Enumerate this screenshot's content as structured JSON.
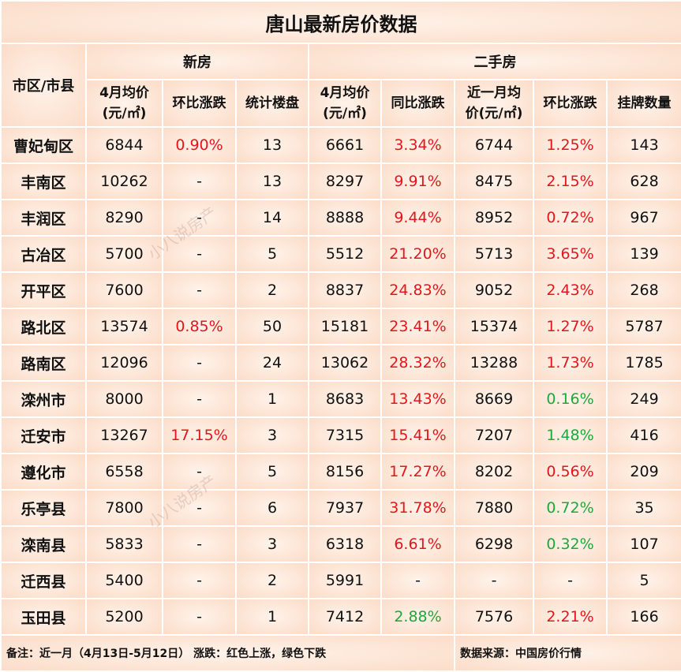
{
  "header": {
    "title": "唐山最新房价数据"
  },
  "table": {
    "group_headers": {
      "district": "市区/市县",
      "new": "新房",
      "second": "二手房"
    },
    "columns": [
      "4月均价\n(元/㎡)",
      "环比涨跌",
      "统计楼盘",
      "4月均价\n(元/㎡)",
      "同比涨跌",
      "近一月均\n价(元/㎡)",
      "环比涨跌",
      "挂牌数量"
    ],
    "colors": {
      "up": "#e8141b",
      "down": "#1fa83a"
    },
    "rows": [
      [
        "曹妃甸区",
        "6844",
        {
          "text": "0.90%",
          "trend": "up"
        },
        "13",
        "6661",
        {
          "text": "3.34%",
          "trend": "up"
        },
        "6744",
        {
          "text": "1.25%",
          "trend": "up"
        },
        "143"
      ],
      [
        "丰南区",
        "10262",
        "-",
        "13",
        "8297",
        {
          "text": "9.91%",
          "trend": "up"
        },
        "8475",
        {
          "text": "2.15%",
          "trend": "up"
        },
        "628"
      ],
      [
        "丰润区",
        "8290",
        "-",
        "14",
        "8888",
        {
          "text": "9.44%",
          "trend": "up"
        },
        "8952",
        {
          "text": "0.72%",
          "trend": "up"
        },
        "967"
      ],
      [
        "古冶区",
        "5700",
        "-",
        "5",
        "5512",
        {
          "text": "21.20%",
          "trend": "up"
        },
        "5713",
        {
          "text": "3.65%",
          "trend": "up"
        },
        "139"
      ],
      [
        "开平区",
        "7600",
        "-",
        "2",
        "8837",
        {
          "text": "24.83%",
          "trend": "up"
        },
        "9052",
        {
          "text": "2.43%",
          "trend": "up"
        },
        "268"
      ],
      [
        "路北区",
        "13574",
        {
          "text": "0.85%",
          "trend": "up"
        },
        "50",
        "15181",
        {
          "text": "23.41%",
          "trend": "up"
        },
        "15374",
        {
          "text": "1.27%",
          "trend": "up"
        },
        "5787"
      ],
      [
        "路南区",
        "12096",
        "-",
        "24",
        "13062",
        {
          "text": "28.32%",
          "trend": "up"
        },
        "13288",
        {
          "text": "1.73%",
          "trend": "up"
        },
        "1785"
      ],
      [
        "滦州市",
        "8000",
        "-",
        "1",
        "8683",
        {
          "text": "13.43%",
          "trend": "up"
        },
        "8669",
        {
          "text": "0.16%",
          "trend": "down"
        },
        "249"
      ],
      [
        "迁安市",
        "13267",
        {
          "text": "17.15%",
          "trend": "up"
        },
        "3",
        "7315",
        {
          "text": "15.41%",
          "trend": "up"
        },
        "7207",
        {
          "text": "1.48%",
          "trend": "down"
        },
        "416"
      ],
      [
        "遵化市",
        "6558",
        "-",
        "5",
        "8156",
        {
          "text": "17.27%",
          "trend": "up"
        },
        "8202",
        {
          "text": "0.56%",
          "trend": "up"
        },
        "209"
      ],
      [
        "乐亭县",
        "7800",
        "-",
        "6",
        "7937",
        {
          "text": "31.78%",
          "trend": "up"
        },
        "7880",
        {
          "text": "0.72%",
          "trend": "down"
        },
        "35"
      ],
      [
        "滦南县",
        "5833",
        "-",
        "3",
        "6318",
        {
          "text": "6.61%",
          "trend": "up"
        },
        "6298",
        {
          "text": "0.32%",
          "trend": "down"
        },
        "107"
      ],
      [
        "迁西县",
        "5400",
        "-",
        "2",
        "5991",
        "-",
        "-",
        "-",
        "5"
      ],
      [
        "玉田县",
        "5200",
        "-",
        "1",
        "7412",
        {
          "text": "2.88%",
          "trend": "down"
        },
        "7576",
        {
          "text": "2.21%",
          "trend": "up"
        },
        "166"
      ]
    ]
  },
  "footer": {
    "note": "备注：近一月（4月13日-5月12日） 涨跌：红色上涨，绿色下跌",
    "source": "数据来源：中国房价行情"
  },
  "watermark": "小八说房产"
}
